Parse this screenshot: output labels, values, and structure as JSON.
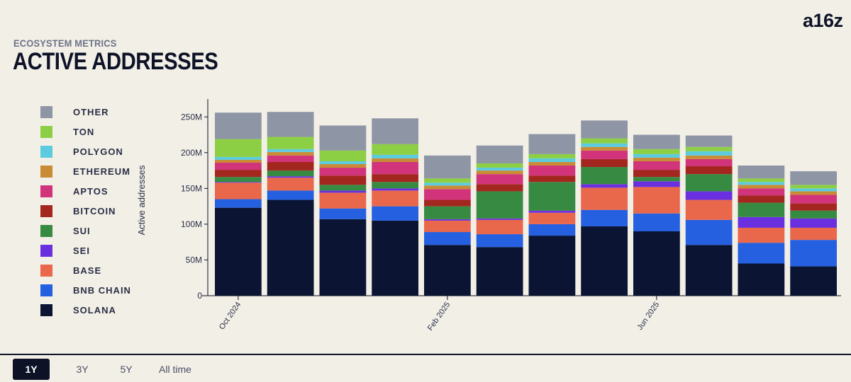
{
  "brand": {
    "logo_text": "a16z"
  },
  "header": {
    "eyebrow": "ECOSYSTEM METRICS",
    "title": "ACTIVE ADDRESSES"
  },
  "legend": [
    {
      "label": "OTHER",
      "color": "#8e95a5"
    },
    {
      "label": "TON",
      "color": "#8ccf44"
    },
    {
      "label": "POLYGON",
      "color": "#5ccbe0"
    },
    {
      "label": "ETHEREUM",
      "color": "#c98b35"
    },
    {
      "label": "APTOS",
      "color": "#d1347a"
    },
    {
      "label": "BITCOIN",
      "color": "#a3261f"
    },
    {
      "label": "SUI",
      "color": "#378a41"
    },
    {
      "label": "SEI",
      "color": "#6a30e0"
    },
    {
      "label": "BASE",
      "color": "#e9674a"
    },
    {
      "label": "BNB CHAIN",
      "color": "#2460e0"
    },
    {
      "label": "SOLANA",
      "color": "#0b1433"
    }
  ],
  "range_tabs": [
    {
      "label": "1Y",
      "active": true
    },
    {
      "label": "3Y",
      "active": false
    },
    {
      "label": "5Y",
      "active": false
    },
    {
      "label": "All time",
      "active": false
    }
  ],
  "chart_data": {
    "type": "bar",
    "stacked": true,
    "ylabel": "Active addresses",
    "xlabel": "",
    "ylim": [
      0,
      275000000
    ],
    "yticks": [
      {
        "value": 0,
        "label": "0"
      },
      {
        "value": 50000000,
        "label": "50M"
      },
      {
        "value": 100000000,
        "label": "100M"
      },
      {
        "value": 150000000,
        "label": "150M"
      },
      {
        "value": 200000000,
        "label": "200M"
      },
      {
        "value": 250000000,
        "label": "250M"
      }
    ],
    "categories": [
      "Oct 2024",
      "Nov 2024",
      "Dec 2024",
      "Jan 2025",
      "Feb 2025",
      "Mar 2025",
      "Apr 2025",
      "May 2025",
      "Jun 2025",
      "Jul 2025",
      "Aug 2025",
      "Sep 2025"
    ],
    "xtick_labels": [
      {
        "index": 0,
        "label": "Oct 2024"
      },
      {
        "index": 4,
        "label": "Feb 2025"
      },
      {
        "index": 8,
        "label": "Jun 2025"
      }
    ],
    "series": [
      {
        "name": "SOLANA",
        "values": [
          123000000,
          134000000,
          107000000,
          105000000,
          71000000,
          68000000,
          84000000,
          97000000,
          90000000,
          71000000,
          45000000,
          41000000
        ]
      },
      {
        "name": "BNB CHAIN",
        "values": [
          12000000,
          13000000,
          15000000,
          20000000,
          18000000,
          18000000,
          16000000,
          23000000,
          25000000,
          35000000,
          29000000,
          37000000
        ]
      },
      {
        "name": "BASE",
        "values": [
          23000000,
          18000000,
          22000000,
          22000000,
          16000000,
          20000000,
          16000000,
          31000000,
          37000000,
          28000000,
          21000000,
          17000000
        ]
      },
      {
        "name": "SEI",
        "values": [
          1000000,
          2000000,
          3000000,
          3000000,
          2000000,
          2000000,
          3000000,
          5000000,
          8000000,
          12000000,
          15000000,
          13000000
        ]
      },
      {
        "name": "SUI",
        "values": [
          7000000,
          8000000,
          8000000,
          9000000,
          18000000,
          38000000,
          40000000,
          24000000,
          6000000,
          24000000,
          20000000,
          11000000
        ]
      },
      {
        "name": "BITCOIN",
        "values": [
          10000000,
          12000000,
          13000000,
          11000000,
          9000000,
          10000000,
          9000000,
          11000000,
          10000000,
          11000000,
          10000000,
          10000000
        ]
      },
      {
        "name": "APTOS",
        "values": [
          10000000,
          9000000,
          11000000,
          17000000,
          15000000,
          14000000,
          14000000,
          12000000,
          12000000,
          10000000,
          10000000,
          12000000
        ]
      },
      {
        "name": "ETHEREUM",
        "values": [
          4000000,
          5000000,
          5000000,
          5000000,
          5000000,
          5000000,
          5000000,
          5000000,
          5000000,
          5000000,
          5000000,
          5000000
        ]
      },
      {
        "name": "POLYGON",
        "values": [
          4000000,
          4000000,
          4000000,
          5000000,
          4000000,
          4000000,
          5000000,
          5000000,
          5000000,
          6000000,
          4000000,
          4000000
        ]
      },
      {
        "name": "TON",
        "values": [
          25000000,
          17000000,
          15000000,
          15000000,
          6000000,
          6000000,
          6000000,
          7000000,
          7000000,
          6000000,
          5000000,
          5000000
        ]
      },
      {
        "name": "OTHER",
        "values": [
          37000000,
          35000000,
          35000000,
          36000000,
          32000000,
          25000000,
          28000000,
          25000000,
          20000000,
          16000000,
          18000000,
          19000000
        ]
      }
    ]
  }
}
